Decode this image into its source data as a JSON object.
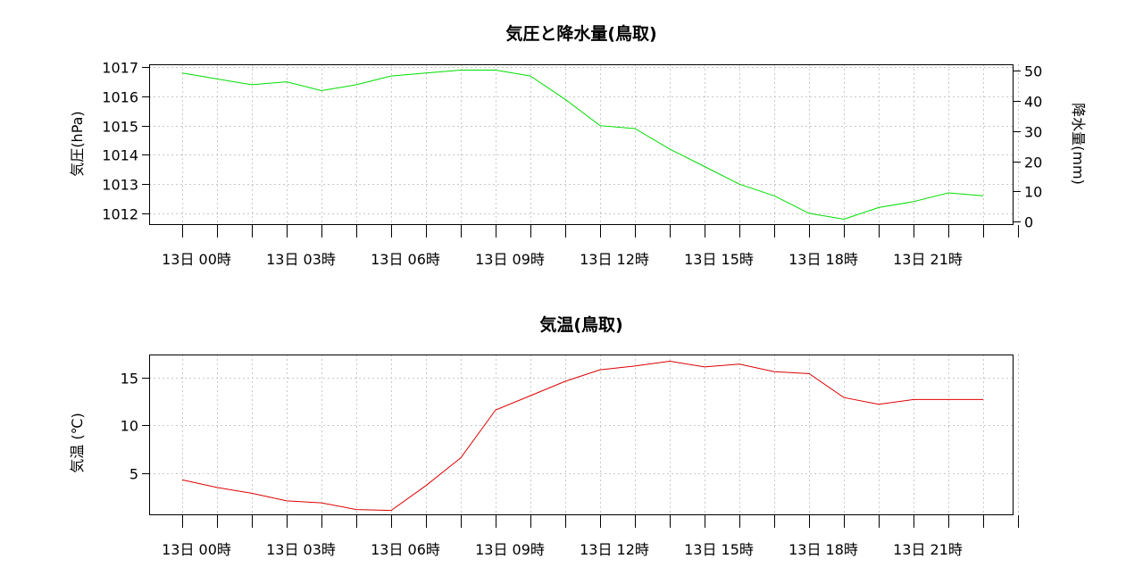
{
  "chart_data": [
    {
      "type": "line",
      "title": "気圧と降水量(鳥取)",
      "ylabel": "気圧(hPa)",
      "y2label": "降水量(mm)",
      "ylim": [
        1011.6,
        1017.1
      ],
      "y2lim": [
        -1.2,
        52.2
      ],
      "yticks": [
        1012,
        1013,
        1014,
        1015,
        1016,
        1017
      ],
      "y2ticks": [
        0,
        10,
        20,
        30,
        40,
        50
      ],
      "grid": true,
      "x": [
        0,
        1,
        2,
        3,
        4,
        5,
        6,
        7,
        8,
        9,
        10,
        11,
        12,
        13,
        14,
        15,
        16,
        17,
        18,
        19,
        20,
        21,
        22,
        23
      ],
      "xticklabels": [
        {
          "x": 0,
          "label": "13日 00時"
        },
        {
          "x": 3,
          "label": "13日 03時"
        },
        {
          "x": 6,
          "label": "13日 06時"
        },
        {
          "x": 9,
          "label": "13日 09時"
        },
        {
          "x": 12,
          "label": "13日 12時"
        },
        {
          "x": 15,
          "label": "13日 15時"
        },
        {
          "x": 18,
          "label": "13日 18時"
        },
        {
          "x": 21,
          "label": "13日 21時"
        }
      ],
      "series": [
        {
          "axis": "left",
          "color": "#00dd00",
          "values": [
            1016.8,
            1016.6,
            1016.4,
            1016.5,
            1016.2,
            1016.4,
            1016.7,
            1016.8,
            1016.9,
            1016.9,
            1016.7,
            1015.9,
            1015.0,
            1014.9,
            1014.2,
            1013.6,
            1013.0,
            1012.6,
            1012.0,
            1011.8,
            1012.2,
            1012.4,
            1012.7,
            1012.6
          ]
        }
      ]
    },
    {
      "type": "line",
      "title": "気温(鳥取)",
      "ylabel": "気温 (℃)",
      "ylim": [
        0.6,
        17.4
      ],
      "yticks": [
        5,
        10,
        15
      ],
      "grid": true,
      "x": [
        0,
        1,
        2,
        3,
        4,
        5,
        6,
        7,
        8,
        9,
        10,
        11,
        12,
        13,
        14,
        15,
        16,
        17,
        18,
        19,
        20,
        21,
        22,
        23
      ],
      "xticklabels": [
        {
          "x": 0,
          "label": "13日 00時"
        },
        {
          "x": 3,
          "label": "13日 03時"
        },
        {
          "x": 6,
          "label": "13日 06時"
        },
        {
          "x": 9,
          "label": "13日 09時"
        },
        {
          "x": 12,
          "label": "13日 12時"
        },
        {
          "x": 15,
          "label": "13日 15時"
        },
        {
          "x": 18,
          "label": "13日 18時"
        },
        {
          "x": 21,
          "label": "13日 21時"
        }
      ],
      "series": [
        {
          "axis": "left",
          "color": "#dd0000",
          "values": [
            4.3,
            3.5,
            2.9,
            2.1,
            1.9,
            1.2,
            1.1,
            3.7,
            6.6,
            11.6,
            13.1,
            14.6,
            15.8,
            16.2,
            16.7,
            16.1,
            16.4,
            15.6,
            15.4,
            12.9,
            12.2,
            12.7,
            12.7,
            12.7
          ]
        }
      ]
    }
  ]
}
